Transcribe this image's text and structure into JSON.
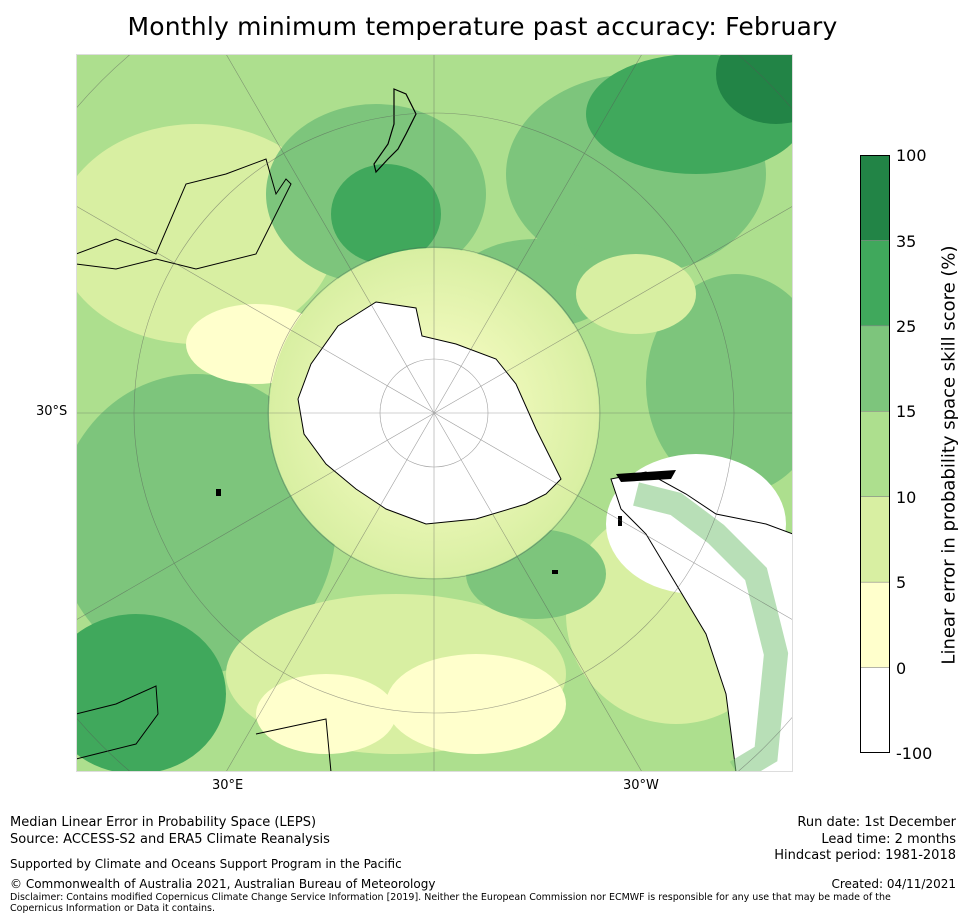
{
  "title": "Monthly minimum temperature past accuracy: February",
  "map": {
    "projection": "south-polar-stereographic",
    "lat_labels": [
      "30°S"
    ],
    "lon_labels": [
      "30°E",
      "30°W"
    ]
  },
  "colorbar": {
    "label": "Linear error in probability space skill score (%)",
    "ticks": [
      "100",
      "35",
      "25",
      "15",
      "10",
      "5",
      "0",
      "-100"
    ],
    "colors": [
      "#228446",
      "#40a85c",
      "#7dc57c",
      "#addf8e",
      "#d8efa2",
      "#ffffcc",
      "#ffffff"
    ]
  },
  "footer": {
    "metric": "Median Linear Error in Probability Space (LEPS)",
    "source": "Source: ACCESS-S2 and ERA5 Climate Reanalysis",
    "support": "Supported by Climate and Oceans Support Program in the Pacific",
    "copyright": "© Commonwealth of Australia 2021, Australian Bureau of Meteorology",
    "disclaimer": "Disclaimer: Contains modified Copernicus Climate Change Service Information [2019]. Neither the European Commission nor ECMWF is responsible for any use that may be made of the Copernicus Information or Data it contains.",
    "run_date": "Run date: 1st December",
    "lead_time": "Lead time: 2 months",
    "hindcast": "Hindcast period: 1981-2018",
    "created": "Created: 04/11/2021"
  }
}
